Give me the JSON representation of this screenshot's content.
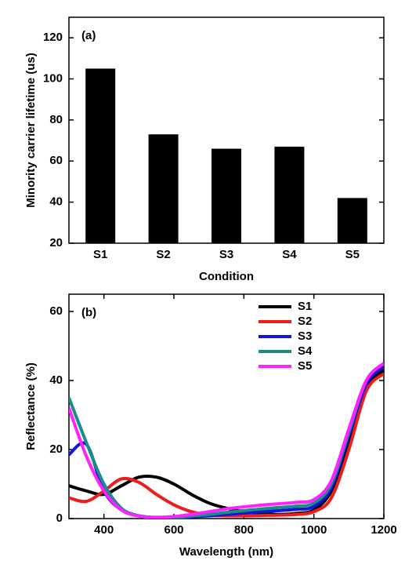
{
  "chart_data": [
    {
      "type": "bar",
      "annotation": "(a)",
      "x_label": "Condition",
      "y_label": "Minority carrier lifetime (us)",
      "categories": [
        "S1",
        "S2",
        "S3",
        "S4",
        "S5"
      ],
      "values": [
        105,
        73,
        66,
        67,
        42
      ],
      "color": "#000000",
      "ylim": [
        20,
        130
      ],
      "yticks": [
        20,
        40,
        60,
        80,
        100,
        120
      ],
      "grid": false
    },
    {
      "type": "line",
      "annotation": "(b)",
      "x_label": "Wavelength (nm)",
      "y_label": "Reflectance (%)",
      "x": [
        300,
        350,
        400,
        450,
        500,
        550,
        600,
        650,
        700,
        750,
        800,
        850,
        900,
        950,
        1000,
        1050,
        1100,
        1150,
        1200
      ],
      "series": [
        {
          "name": "S1",
          "color": "#000000",
          "values": [
            9.5,
            8,
            7,
            9.5,
            12,
            12,
            10,
            7,
            4.5,
            3,
            2,
            1.5,
            1.2,
            1.5,
            2.5,
            8,
            22,
            38,
            43
          ]
        },
        {
          "name": "S2",
          "color": "#ee1c1c",
          "values": [
            6,
            5,
            8,
            11.5,
            10.5,
            7,
            4,
            2,
            1,
            0.8,
            0.8,
            0.9,
            1,
            1.2,
            2,
            6,
            20,
            37,
            42
          ]
        },
        {
          "name": "S3",
          "color": "#1414dc",
          "values": [
            18.5,
            21.5,
            8,
            2.5,
            0.8,
            0.3,
            0.3,
            0.5,
            0.8,
            1.2,
            1.6,
            2,
            2.3,
            2.7,
            3.5,
            9,
            24,
            39,
            44
          ]
        },
        {
          "name": "S4",
          "color": "#1a8c8c",
          "values": [
            35,
            22,
            10,
            3,
            0.8,
            0.3,
            0.3,
            0.7,
            1.2,
            1.8,
            2.3,
            2.8,
            3.2,
            3.6,
            4.5,
            10,
            25,
            40,
            45
          ]
        },
        {
          "name": "S5",
          "color": "#ff22ff",
          "values": [
            32,
            18,
            8,
            2.5,
            0.7,
            0.4,
            0.6,
            1.2,
            2,
            2.8,
            3.4,
            3.9,
            4.3,
            4.7,
            5.5,
            11,
            26,
            40,
            45
          ]
        }
      ],
      "xlim": [
        300,
        1200
      ],
      "xticks": [
        400,
        600,
        800,
        1000,
        1200
      ],
      "ylim": [
        0,
        65
      ],
      "yticks": [
        0,
        20,
        40,
        60
      ],
      "grid": false,
      "legend": "upper right"
    }
  ]
}
